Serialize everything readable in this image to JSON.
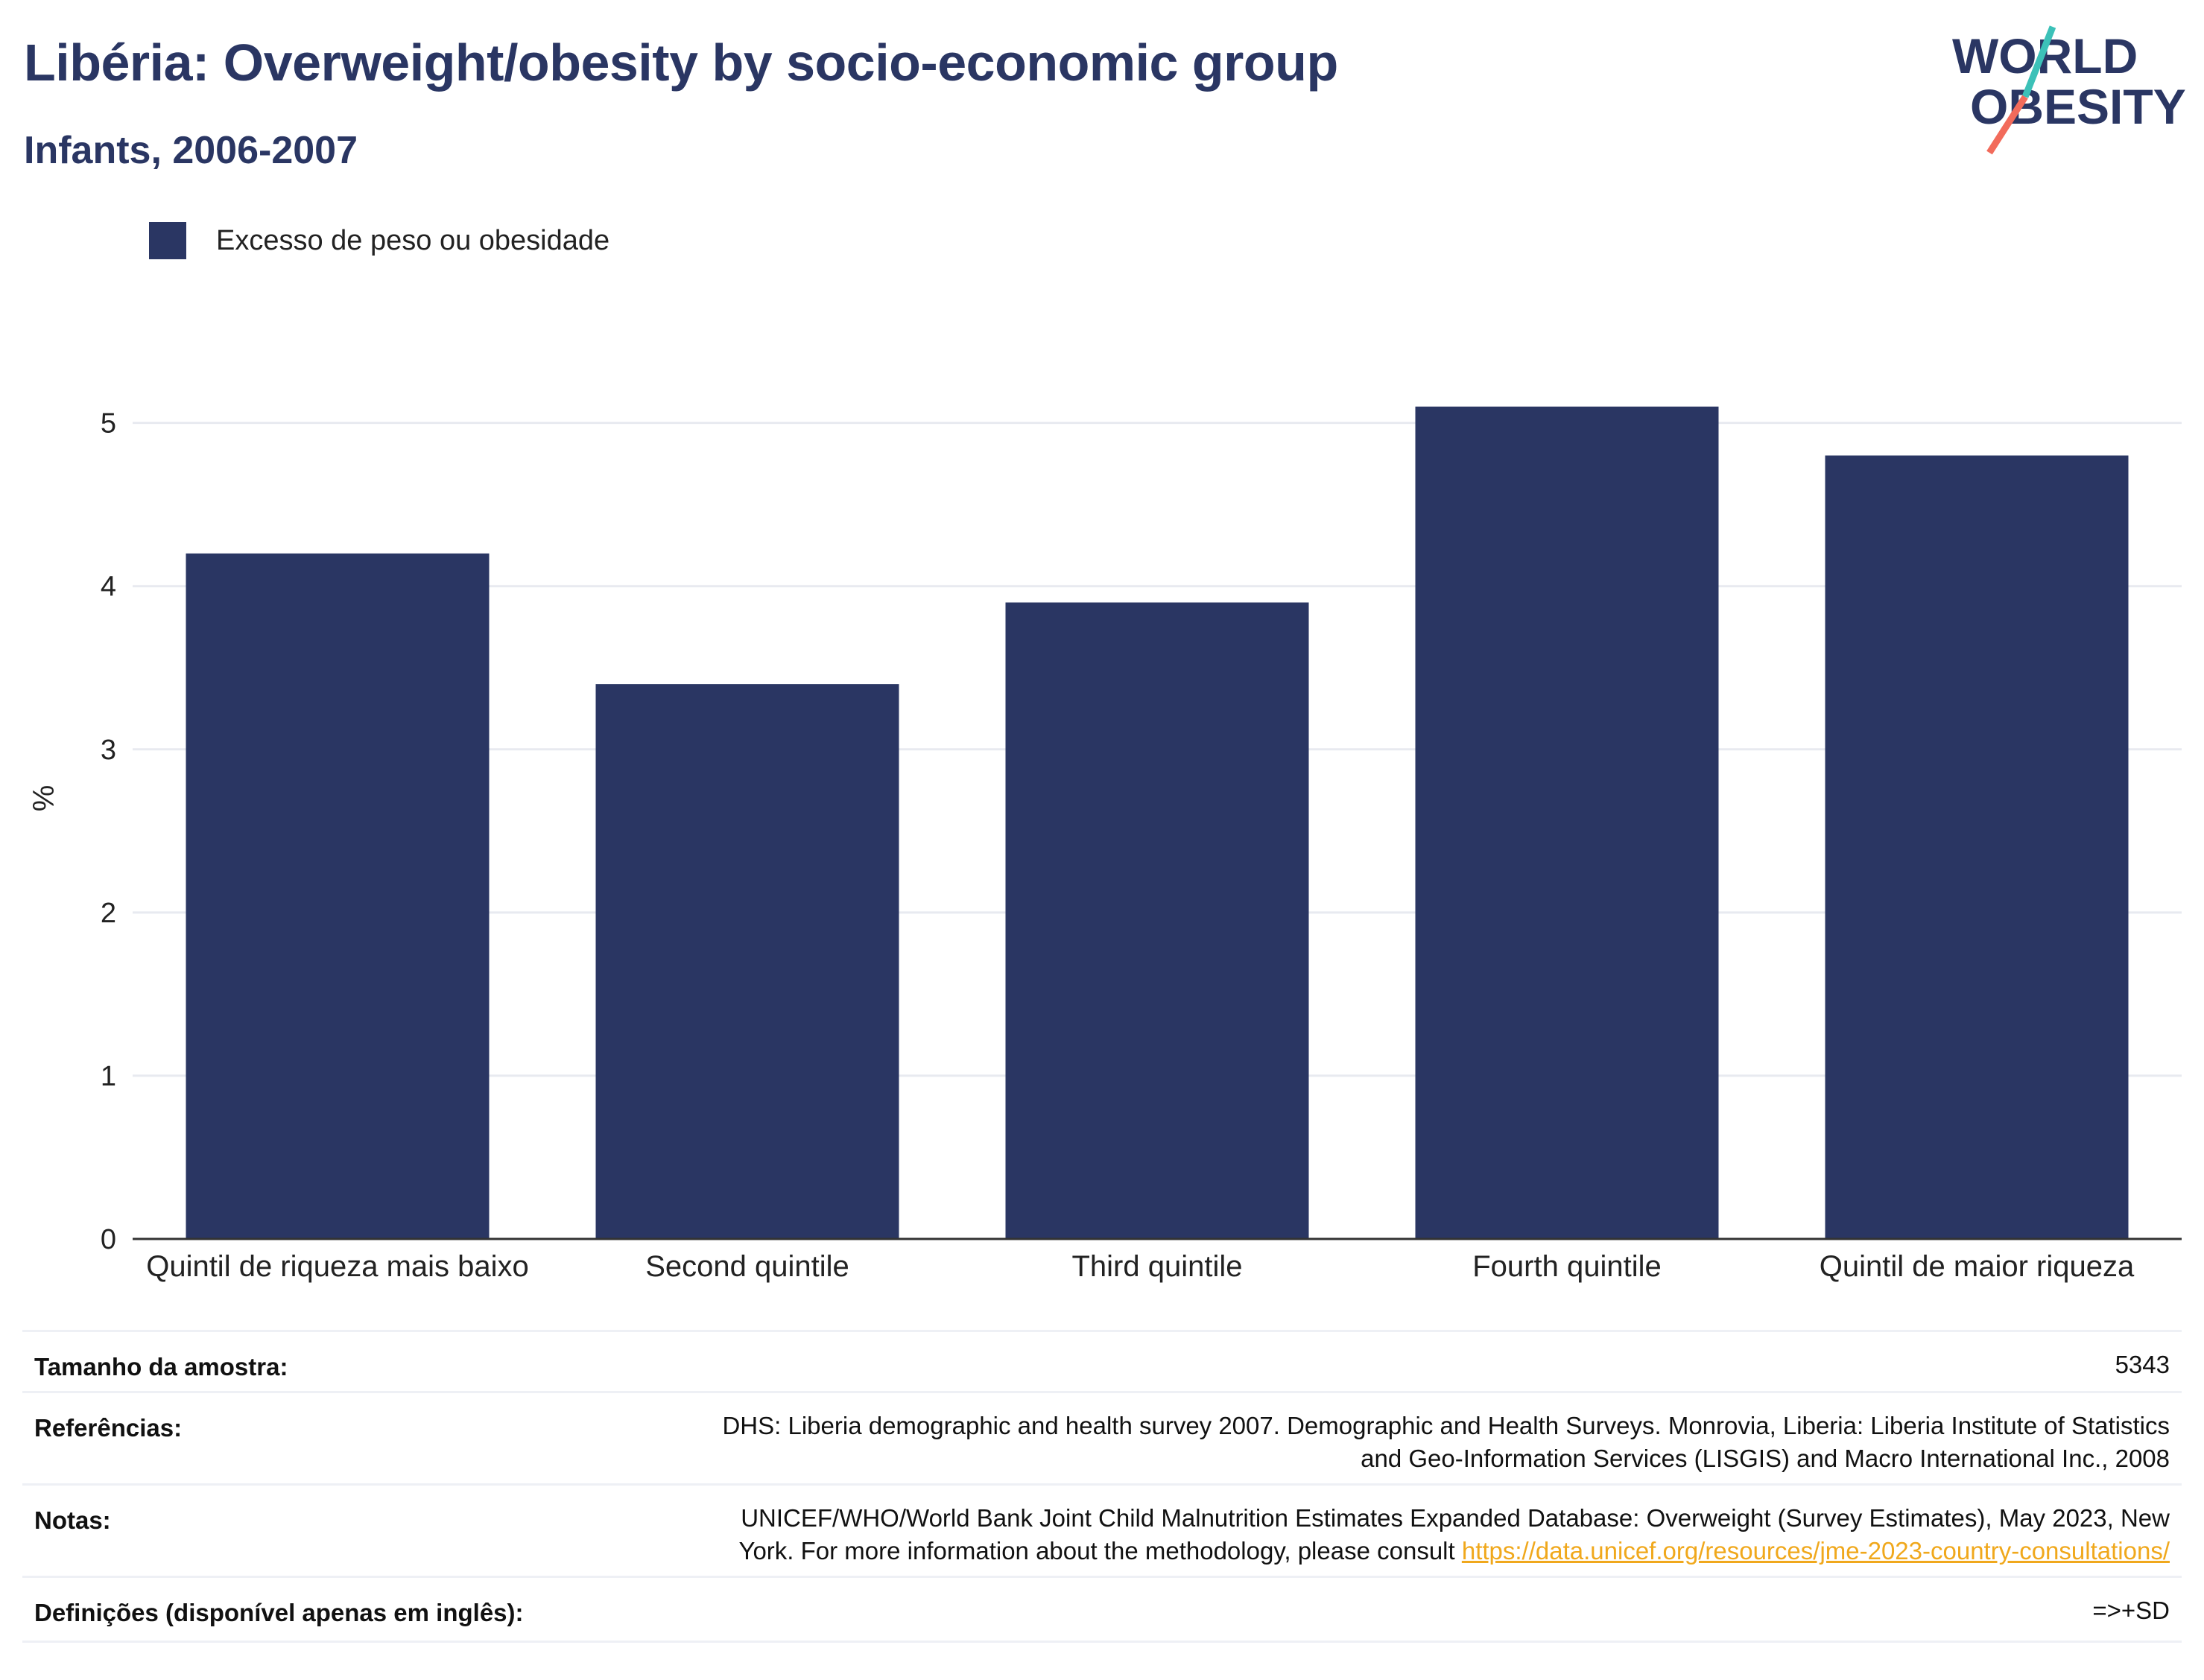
{
  "header": {
    "title": "Libéria: Overweight/obesity by socio-economic group",
    "subtitle": "Infants, 2006-2007"
  },
  "logo": {
    "line1": "WORLD",
    "line2": "OBESITY",
    "text_color": "#2a3663",
    "slash_colors": [
      "#3cc1b8",
      "#f26b5b"
    ]
  },
  "colors": {
    "bar": "#2a3663",
    "grid": "#e8eaf0",
    "axis": "#333333"
  },
  "chart_data": {
    "type": "bar",
    "categories": [
      "Quintil de riqueza mais baixo",
      "Second quintile",
      "Third quintile",
      "Fourth quintile",
      "Quintil de maior riqueza"
    ],
    "series": [
      {
        "name": "Excesso de peso ou obesidade",
        "values": [
          4.2,
          3.4,
          3.9,
          5.1,
          4.8
        ]
      }
    ],
    "ylabel": "%",
    "ylim": [
      0,
      5.4
    ],
    "yticks": [
      0,
      1,
      2,
      3,
      4,
      5
    ],
    "grid": true,
    "legend": "top-left"
  },
  "meta": {
    "sample_label": "Tamanho da amostra:",
    "sample_value": "5343",
    "references_label": "Referências:",
    "references_line1": "DHS: Liberia demographic and health survey 2007. Demographic and Health Surveys. Monrovia, Liberia: Liberia Institute of Statistics",
    "references_line2": "and Geo-Information Services (LISGIS) and Macro International Inc., 2008",
    "notes_label": "Notas:",
    "notes_line1": "UNICEF/WHO/World Bank Joint Child Malnutrition Estimates Expanded Database: Overweight (Survey Estimates), May 2023, New",
    "notes_line2": "York. For more information about the methodology, please consult ",
    "notes_link": "https://data.unicef.org/resources/jme-2023-country-consultations/",
    "definitions_label": "Definições (disponível apenas em inglês):",
    "definitions_value": "=>+SD"
  }
}
